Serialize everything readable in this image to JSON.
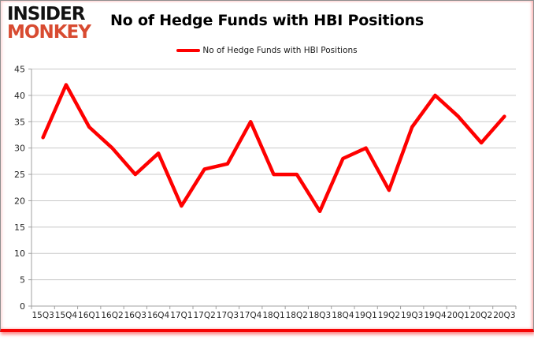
{
  "logo": {
    "line1": "INSIDER",
    "line2": "MONKEY"
  },
  "header": {
    "title": "No of Hedge Funds with HBI Positions"
  },
  "legend": {
    "label": "No of Hedge Funds with HBI Positions"
  },
  "colors": {
    "series_red": "#fe0000",
    "logo_red": "#d84b31",
    "grid": "#c9c9c9",
    "axis": "#a0a0a0",
    "text": "#262626",
    "frame_gray": "#8f8f8f",
    "bottom_bar_red": "#f50505"
  },
  "chart_data": {
    "type": "line",
    "title": "No of Hedge Funds with HBI Positions",
    "categories": [
      "15Q3",
      "15Q4",
      "16Q1",
      "16Q2",
      "16Q3",
      "16Q4",
      "17Q1",
      "17Q2",
      "17Q3",
      "17Q4",
      "18Q1",
      "18Q2",
      "18Q3",
      "18Q4",
      "19Q1",
      "19Q2",
      "19Q3",
      "19Q4",
      "20Q1",
      "20Q2",
      "20Q3"
    ],
    "series": [
      {
        "name": "No of Hedge Funds with HBI Positions",
        "color": "#fe0000",
        "values": [
          32,
          42,
          34,
          30,
          25,
          29,
          19,
          26,
          27,
          35,
          25,
          25,
          18,
          28,
          30,
          22,
          34,
          40,
          36,
          31,
          36
        ]
      }
    ],
    "xlabel": "",
    "ylabel": "",
    "ylim": [
      0,
      45
    ],
    "ytick_step": 5,
    "grid": true,
    "legend_position": "top-center"
  }
}
